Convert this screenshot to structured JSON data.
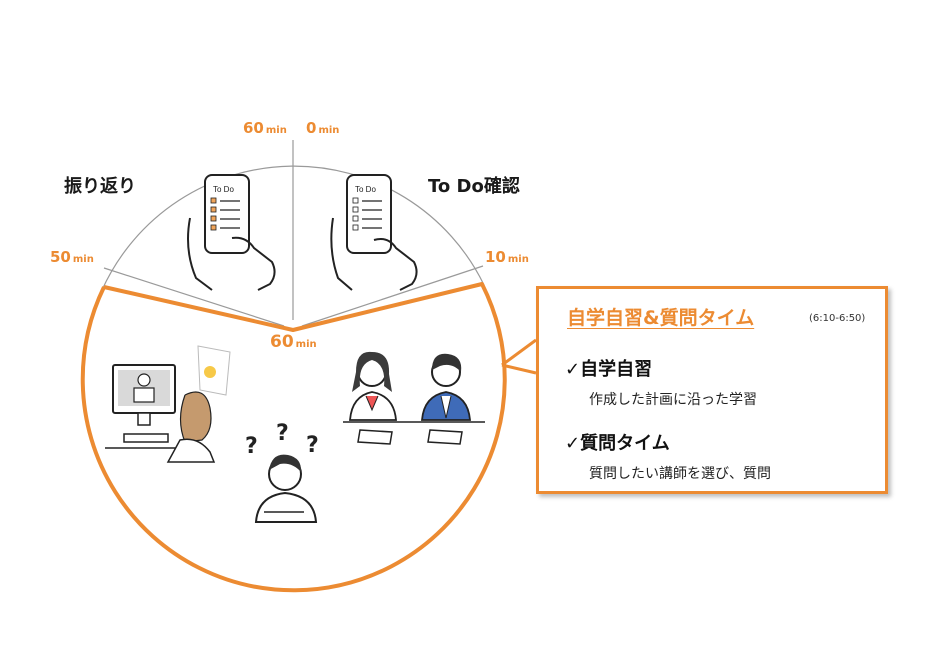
{
  "circle_labels": {
    "top_left_value": "60",
    "top_left_unit": "min",
    "top_right_value": "0",
    "top_right_unit": "min",
    "left_value": "50",
    "left_unit": "min",
    "right_value": "10",
    "right_unit": "min",
    "center_value": "60",
    "center_unit": "min"
  },
  "segments": {
    "review_title": "振り返り",
    "todo_title": "To Do確認",
    "phone_text_left": "To Do",
    "phone_text_right": "To Do"
  },
  "callout": {
    "title": "自学自習&質問タイム",
    "time": "(6:10-6:50)",
    "item1_head": "✓自学自習",
    "item1_desc": "作成した計画に沿った学習",
    "item2_head": "✓質問タイム",
    "item2_desc": "質問したい講師を選び、質問"
  },
  "colors": {
    "accent": "#ec8b32",
    "line": "#9a9a9a",
    "ink": "#222222"
  }
}
